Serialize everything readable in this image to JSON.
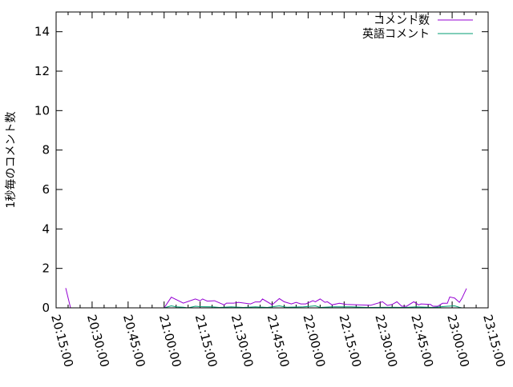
{
  "chart_data": {
    "type": "line",
    "title": "",
    "xlabel": "",
    "ylabel": "1秒毎のコメント数",
    "xlim": [
      "20:15:00",
      "23:15:00"
    ],
    "ylim": [
      0,
      15
    ],
    "xticks": [
      "20:15:00",
      "20:30:00",
      "20:45:00",
      "21:00:00",
      "21:15:00",
      "21:30:00",
      "21:45:00",
      "22:00:00",
      "22:15:00",
      "22:30:00",
      "22:45:00",
      "23:00:00",
      "23:15:00"
    ],
    "yticks": [
      0,
      2,
      4,
      6,
      8,
      10,
      12,
      14
    ],
    "grid": false,
    "legend_position": "top-right",
    "series": [
      {
        "name": "コメント数",
        "color": "#9400d3",
        "points": [
          [
            "20:19",
            1.0
          ],
          [
            "20:21",
            0
          ],
          [
            "21:00",
            0
          ],
          [
            "21:03",
            0.54
          ],
          [
            "21:08",
            0.24
          ],
          [
            "21:13",
            0.45
          ],
          [
            "21:15",
            0.36
          ],
          [
            "21:16",
            0.45
          ],
          [
            "21:18",
            0.34
          ],
          [
            "21:21",
            0.36
          ],
          [
            "21:25",
            0.15
          ],
          [
            "21:26",
            0.24
          ],
          [
            "21:29",
            0.24
          ],
          [
            "21:31",
            0.28
          ],
          [
            "21:36",
            0.2
          ],
          [
            "21:38",
            0.3
          ],
          [
            "21:40",
            0.3
          ],
          [
            "21:41",
            0.45
          ],
          [
            "21:45",
            0.16
          ],
          [
            "21:48",
            0.47
          ],
          [
            "21:50",
            0.31
          ],
          [
            "21:53",
            0.2
          ],
          [
            "21:55",
            0.28
          ],
          [
            "21:57",
            0.2
          ],
          [
            "21:59",
            0.2
          ],
          [
            "22:02",
            0.36
          ],
          [
            "22:03",
            0.31
          ],
          [
            "22:05",
            0.45
          ],
          [
            "22:07",
            0.28
          ],
          [
            "22:08",
            0.31
          ],
          [
            "22:10",
            0.15
          ],
          [
            "22:13",
            0.23
          ],
          [
            "22:16",
            0.17
          ],
          [
            "22:26",
            0.13
          ],
          [
            "22:31",
            0.31
          ],
          [
            "22:33",
            0.12
          ],
          [
            "22:35",
            0.17
          ],
          [
            "22:37",
            0.31
          ],
          [
            "22:39",
            0.08
          ],
          [
            "22:41",
            0.08
          ],
          [
            "22:44",
            0.31
          ],
          [
            "22:46",
            0.15
          ],
          [
            "22:47",
            0.2
          ],
          [
            "22:51",
            0.17
          ],
          [
            "22:52",
            0.08
          ],
          [
            "22:54",
            0.08
          ],
          [
            "22:56",
            0.23
          ],
          [
            "22:58",
            0.23
          ],
          [
            "22:59",
            0.55
          ],
          [
            "23:01",
            0.5
          ],
          [
            "23:03",
            0.28
          ],
          [
            "23:04",
            0.47
          ],
          [
            "23:06",
            0.98
          ]
        ]
      },
      {
        "name": "英語コメント",
        "color": "#009e73",
        "points": [
          [
            "21:00",
            0
          ],
          [
            "21:03",
            0.1
          ],
          [
            "21:05",
            0.05
          ],
          [
            "21:08",
            0.03
          ],
          [
            "21:10",
            0
          ],
          [
            "21:13",
            0.08
          ],
          [
            "21:15",
            0.06
          ],
          [
            "21:20",
            0.05
          ],
          [
            "21:23",
            0.02
          ],
          [
            "21:28",
            0.05
          ],
          [
            "21:33",
            0.02
          ],
          [
            "21:38",
            0.05
          ],
          [
            "21:43",
            0.02
          ],
          [
            "21:48",
            0.1
          ],
          [
            "21:51",
            0.03
          ],
          [
            "21:58",
            0.05
          ],
          [
            "22:03",
            0.1
          ],
          [
            "22:05",
            0.02
          ],
          [
            "22:10",
            0.05
          ],
          [
            "22:18",
            0.05
          ],
          [
            "22:25",
            0.02
          ],
          [
            "22:35",
            0.03
          ],
          [
            "22:40",
            0.02
          ],
          [
            "22:45",
            0.05
          ],
          [
            "22:52",
            0.02
          ],
          [
            "22:58",
            0.08
          ],
          [
            "23:01",
            0.1
          ],
          [
            "23:03",
            0.03
          ],
          [
            "23:04",
            0
          ]
        ]
      }
    ]
  }
}
